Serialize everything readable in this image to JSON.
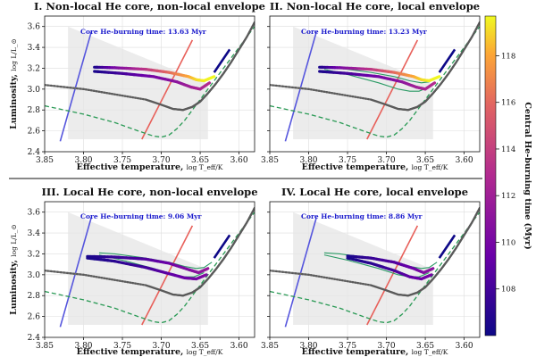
{
  "figure": {
    "colorbar": {
      "label": "Central He-burning time (Myr)",
      "ticks": [
        108,
        110,
        112,
        114,
        116,
        118
      ],
      "range": [
        106,
        119.7
      ],
      "colormap": "plasma"
    },
    "colors": {
      "track_grey": "#6e6e6e",
      "dashed_green": "#2a9a55",
      "green_loop": "#2a9a64",
      "blue_line": "#5555dd",
      "red_line": "#e8605a",
      "shade": "#e6e6e6",
      "annotation": "#1a1acc"
    }
  },
  "chart_data": [
    {
      "type": "line",
      "title": "I. Non-local He core, non-local envelope",
      "annotation": "Core He-burning time: 13.63 Myr",
      "xlabel": "Effective temperature, ",
      "xlabel_sub": "log T_eff/K",
      "ylabel": "Luminosity, ",
      "ylabel_sub": "log L/L_⊙",
      "xlim": [
        3.85,
        3.58
      ],
      "ylim": [
        2.4,
        3.7
      ],
      "xticks": [
        "3.85",
        "3.80",
        "3.75",
        "3.70",
        "3.65",
        "3.60"
      ],
      "yticks": [
        "2.4",
        "2.6",
        "2.8",
        "3.0",
        "3.2",
        "3.4",
        "3.6"
      ],
      "show_green_loops": false,
      "loop": {
        "x": [
          3.786,
          3.76,
          3.72,
          3.69,
          3.665,
          3.655,
          3.645,
          3.632
        ],
        "y": [
          3.21,
          3.205,
          3.19,
          3.16,
          3.12,
          3.09,
          3.08,
          3.12
        ],
        "t": [
          106.4,
          110,
          113.5,
          116,
          118,
          119,
          119.5,
          119.7
        ]
      },
      "loop_inner": {
        "x": [
          3.786,
          3.75,
          3.71,
          3.68,
          3.662,
          3.65,
          3.638
        ],
        "y": [
          3.17,
          3.15,
          3.12,
          3.07,
          3.02,
          3.0,
          3.06
        ],
        "t": [
          106.4,
          108,
          110,
          111,
          112,
          112.5,
          113
        ]
      }
    },
    {
      "type": "line",
      "title": "II. Non-local He core, local envelope",
      "annotation": "Core He-burning time: 13.23 Myr",
      "xlabel": "Effective temperature, ",
      "xlabel_sub": "log T_eff/K",
      "ylabel": "",
      "ylabel_sub": "",
      "xlim": [
        3.85,
        3.58
      ],
      "ylim": [
        2.4,
        3.7
      ],
      "xticks": [
        "3.85",
        "3.80",
        "3.75",
        "3.70",
        "3.65",
        "3.60"
      ],
      "yticks": [],
      "show_green_loops": true,
      "loop": {
        "x": [
          3.786,
          3.76,
          3.72,
          3.69,
          3.665,
          3.655,
          3.645,
          3.632
        ],
        "y": [
          3.21,
          3.205,
          3.19,
          3.16,
          3.12,
          3.09,
          3.08,
          3.12
        ],
        "t": [
          106.4,
          110,
          113.5,
          116,
          118,
          119,
          119.5,
          119.7
        ]
      },
      "loop_inner": {
        "x": [
          3.786,
          3.75,
          3.71,
          3.68,
          3.662,
          3.65,
          3.638
        ],
        "y": [
          3.17,
          3.15,
          3.12,
          3.07,
          3.02,
          3.0,
          3.06
        ],
        "t": [
          106.4,
          108,
          110,
          111,
          112,
          112.5,
          113
        ]
      }
    },
    {
      "type": "line",
      "title": "III. Local He core, non-local envelope",
      "annotation": "Core He-burning time: 9.06 Myr",
      "xlabel": "Effective temperature, ",
      "xlabel_sub": "log T_eff/K",
      "ylabel": "Luminosity, ",
      "ylabel_sub": "log L/L_⊙",
      "xlim": [
        3.85,
        3.58
      ],
      "ylim": [
        2.4,
        3.7
      ],
      "xticks": [
        "3.85",
        "3.80",
        "3.75",
        "3.70",
        "3.65",
        "3.60"
      ],
      "yticks": [
        "2.4",
        "2.6",
        "2.8",
        "3.0",
        "3.2",
        "3.4",
        "3.6"
      ],
      "show_green_loops": true,
      "loop": {
        "x": [
          3.795,
          3.76,
          3.72,
          3.69,
          3.665,
          3.652,
          3.64
        ],
        "y": [
          3.175,
          3.17,
          3.15,
          3.11,
          3.05,
          3.02,
          3.06
        ],
        "t": [
          106.4,
          107.5,
          108.5,
          109.5,
          110.5,
          111,
          111.5
        ]
      },
      "loop_inner": {
        "x": [
          3.795,
          3.76,
          3.72,
          3.69,
          3.67,
          3.655,
          3.642
        ],
        "y": [
          3.16,
          3.13,
          3.07,
          3.01,
          2.97,
          2.96,
          3.0
        ],
        "t": [
          106.4,
          107,
          108,
          109,
          109.5,
          110,
          110.5
        ]
      }
    },
    {
      "type": "line",
      "title": "IV. Local He core, local envelope",
      "annotation": "Core He-burning time: 8.86 Myr",
      "xlabel": "Effective temperature, ",
      "xlabel_sub": "log T_eff/K",
      "ylabel": "",
      "ylabel_sub": "",
      "xlim": [
        3.85,
        3.58
      ],
      "ylim": [
        2.4,
        3.7
      ],
      "xticks": [
        "3.85",
        "3.80",
        "3.75",
        "3.70",
        "3.65",
        "3.60"
      ],
      "yticks": [],
      "show_green_loops": true,
      "loop": {
        "x": [
          3.75,
          3.72,
          3.69,
          3.665,
          3.652,
          3.64
        ],
        "y": [
          3.18,
          3.16,
          3.12,
          3.06,
          3.02,
          3.06
        ],
        "t": [
          106.4,
          107.5,
          108.5,
          109.5,
          110.5,
          111
        ]
      },
      "loop_inner": {
        "x": [
          3.75,
          3.72,
          3.69,
          3.67,
          3.655,
          3.642
        ],
        "y": [
          3.16,
          3.11,
          3.04,
          2.98,
          2.96,
          3.0
        ],
        "t": [
          106.4,
          107,
          108,
          109,
          109.5,
          110
        ]
      }
    }
  ],
  "common_tracks": {
    "grey_track": {
      "x": [
        3.85,
        3.8,
        3.76,
        3.72,
        3.7,
        3.685,
        3.672,
        3.66,
        3.65,
        3.64,
        3.63,
        3.62,
        3.61,
        3.6,
        3.59,
        3.58
      ],
      "y": [
        3.04,
        3.0,
        2.95,
        2.9,
        2.85,
        2.81,
        2.8,
        2.83,
        2.88,
        2.96,
        3.05,
        3.15,
        3.26,
        3.38,
        3.5,
        3.64
      ]
    },
    "dashed_track": {
      "x": [
        3.85,
        3.8,
        3.76,
        3.73,
        3.71,
        3.7,
        3.69,
        3.68,
        3.67,
        3.66,
        3.64,
        3.62,
        3.6,
        3.58
      ],
      "y": [
        2.84,
        2.76,
        2.68,
        2.6,
        2.55,
        2.54,
        2.56,
        2.62,
        2.7,
        2.8,
        3.0,
        3.2,
        3.4,
        3.6
      ]
    },
    "green_loop_outer": {
      "x": [
        3.78,
        3.76,
        3.72,
        3.69,
        3.67,
        3.655,
        3.645,
        3.635
      ],
      "y": [
        3.21,
        3.2,
        3.16,
        3.12,
        3.08,
        3.06,
        3.07,
        3.12
      ]
    },
    "green_loop_inner": {
      "x": [
        3.78,
        3.75,
        3.71,
        3.685,
        3.67,
        3.658,
        3.645
      ],
      "y": [
        3.19,
        3.14,
        3.06,
        3.0,
        2.98,
        2.98,
        3.02
      ]
    },
    "blue_line": {
      "x": [
        3.83,
        3.79
      ],
      "y": [
        2.5,
        3.55
      ]
    },
    "red_line": {
      "x": [
        3.725,
        3.66
      ],
      "y": [
        2.52,
        3.47
      ]
    },
    "shade": {
      "x": [
        3.82,
        3.64
      ],
      "y_bottom": 2.52,
      "y_top_left": 3.6,
      "y_top_right": 3.05
    }
  }
}
